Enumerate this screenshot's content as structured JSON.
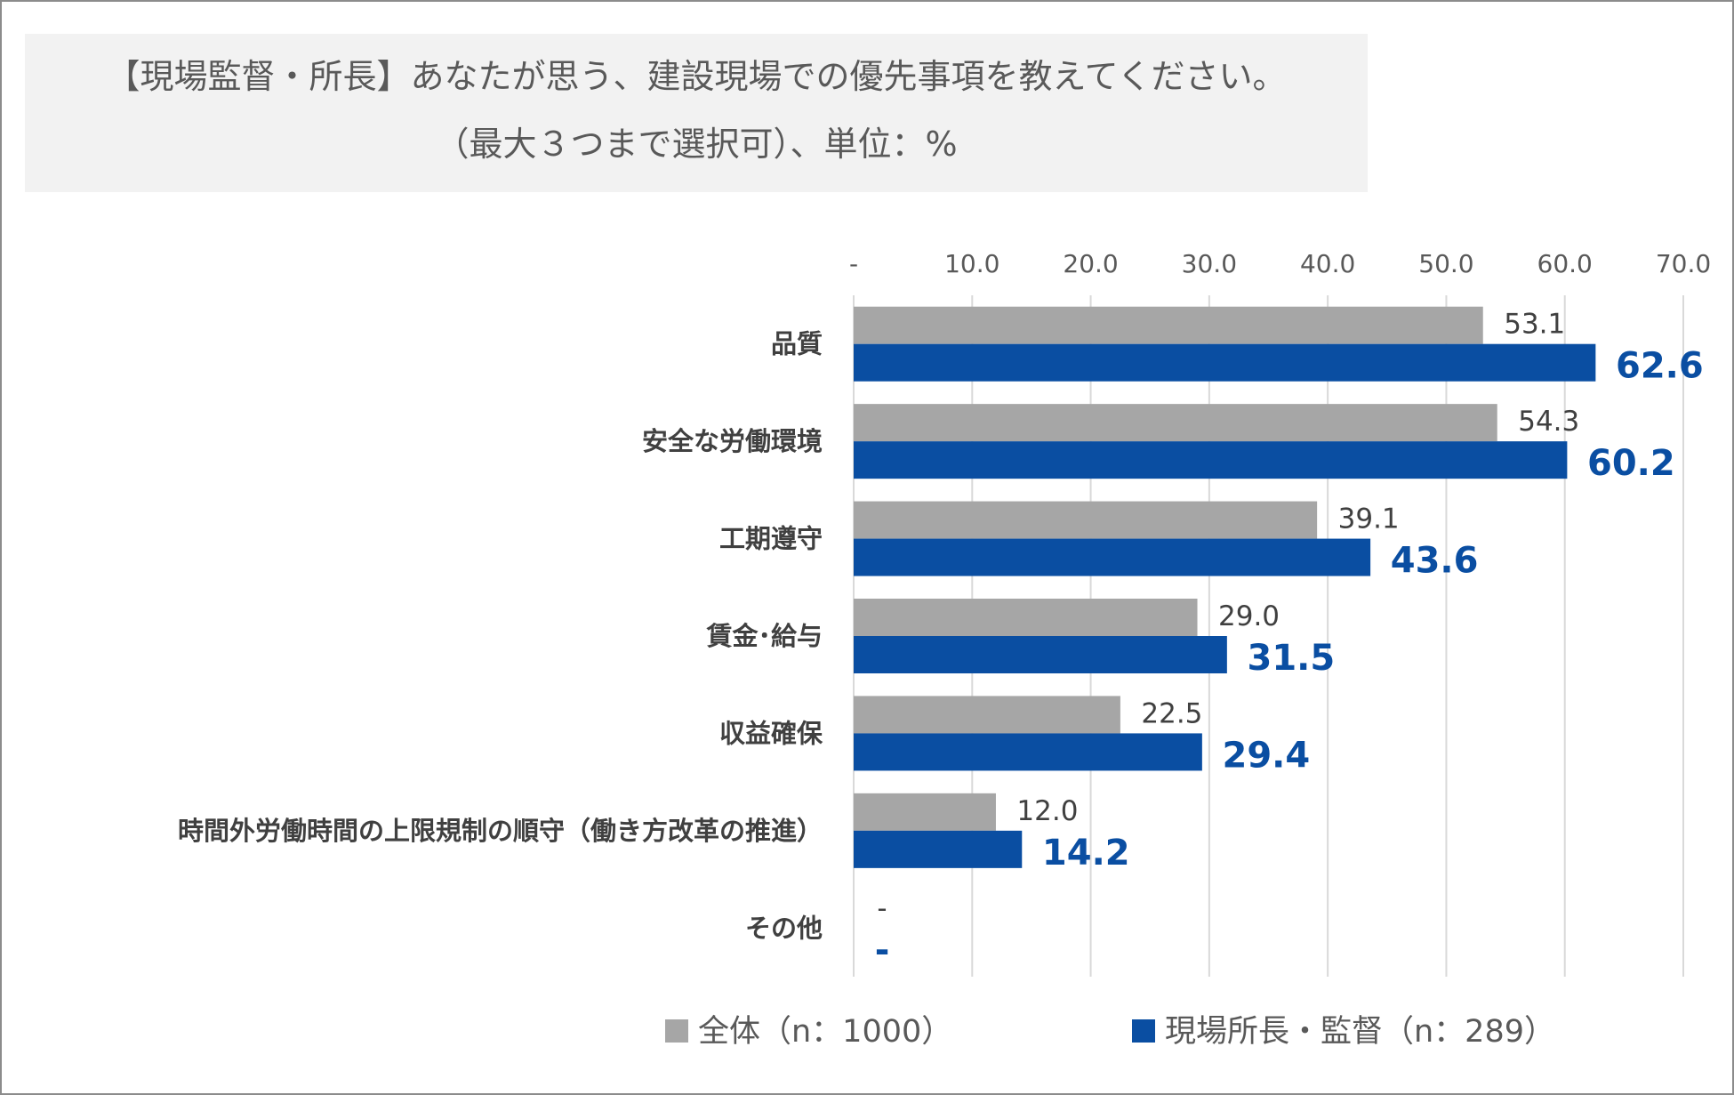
{
  "title": {
    "line1": "【現場監督・所長】あなたが思う、建設現場での優先事項を教えてください。",
    "line2": "（最大３つまで選択可）、単位：%"
  },
  "colors": {
    "all": "#a6a6a6",
    "site": "#0a4ea2",
    "grid": "#d9d9d9"
  },
  "chart_data": {
    "type": "bar",
    "orientation": "horizontal",
    "title": "【現場監督・所長】あなたが思う、建設現場での優先事項を教えてください。（最大３つまで選択可）、単位：%",
    "categories": [
      "品質",
      "安全な労働環境",
      "工期遵守",
      "賃金･給与",
      "収益確保",
      "時間外労働時間の上限規制の順守（働き方改革の推進）",
      "その他"
    ],
    "series": [
      {
        "name": "全体（n：1000）",
        "values": [
          53.1,
          54.3,
          39.1,
          29.0,
          22.5,
          12.0,
          0
        ],
        "labels": [
          "53.1",
          "54.3",
          "39.1",
          "29.0",
          "22.5",
          "12.0",
          "-"
        ]
      },
      {
        "name": "現場所長・監督（n：289）",
        "values": [
          62.6,
          60.2,
          43.6,
          31.5,
          29.4,
          14.2,
          0
        ],
        "labels": [
          "62.6",
          "60.2",
          "43.6",
          "31.5",
          "29.4",
          "14.2",
          "-"
        ]
      }
    ],
    "xlim": [
      0,
      70
    ],
    "xticks": [
      "-",
      "10.0",
      "20.0",
      "30.0",
      "40.0",
      "50.0",
      "60.0",
      "70.0"
    ],
    "grid": true,
    "legend": "bottom"
  }
}
